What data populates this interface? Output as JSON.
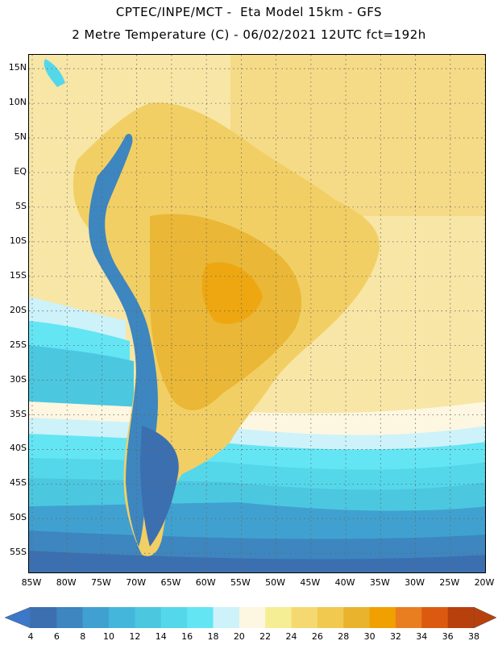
{
  "header": {
    "title_line1": "CPTEC/INPE/MCT -  Eta Model 15km - GFS",
    "title_line2": "2 Metre Temperature (C) - 06/02/2021 12UTC fct=192h"
  },
  "map": {
    "lat_labels": [
      "15N",
      "10N",
      "5N",
      "EQ",
      "5S",
      "10S",
      "15S",
      "20S",
      "25S",
      "30S",
      "35S",
      "40S",
      "45S",
      "50S",
      "55S"
    ],
    "lon_labels": [
      "85W",
      "80W",
      "75W",
      "70W",
      "65W",
      "60W",
      "55W",
      "50W",
      "45W",
      "40W",
      "35W",
      "30W",
      "25W",
      "20W"
    ],
    "lat_range": [
      17,
      -58
    ],
    "lon_range": [
      -85,
      -20
    ],
    "grid": "dotted"
  },
  "colorbar": {
    "labels": [
      "4",
      "6",
      "8",
      "10",
      "12",
      "14",
      "16",
      "18",
      "20",
      "22",
      "24",
      "26",
      "28",
      "30",
      "32",
      "34",
      "36",
      "38"
    ],
    "low_arrow_color": "#3c78c8",
    "high_arrow_color": "#b8400c",
    "bin_colors": [
      "#3c6fb0",
      "#3d86bf",
      "#40a1d0",
      "#45b6db",
      "#4cc7e0",
      "#55d7ea",
      "#63e5f4",
      "#cdf2fa",
      "#fdf6e0",
      "#f6ee94",
      "#f5d970",
      "#f1c94e",
      "#e9b32e",
      "#f0a000",
      "#e87e20",
      "#dc5a10",
      "#b8400c"
    ]
  }
}
